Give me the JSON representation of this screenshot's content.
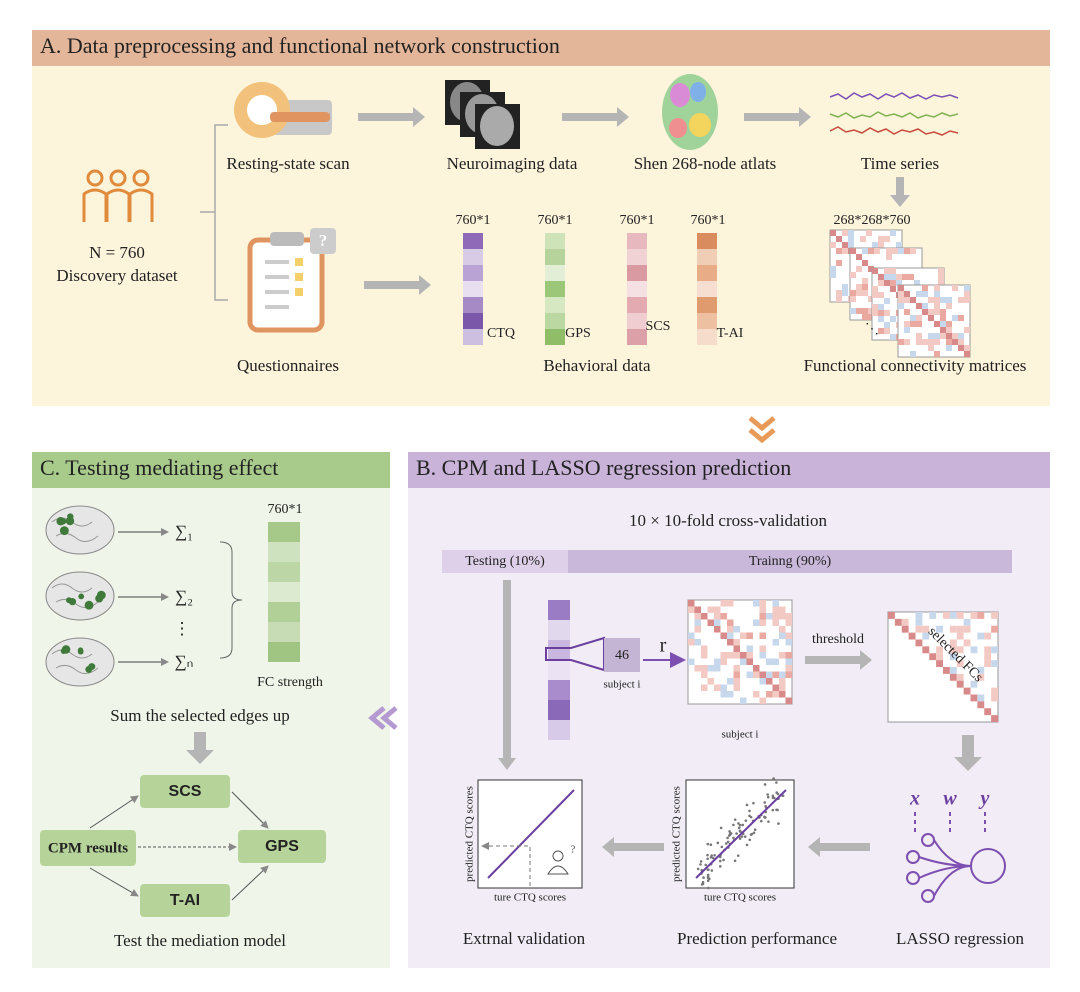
{
  "panel_a": {
    "title": "A. Data preprocessing and functional network construction",
    "population": {
      "n": "N = 760",
      "label": "Discovery dataset"
    },
    "steps": [
      "Resting-state scan",
      "Neuroimaging data",
      "Shen 268-node atlats",
      "Time series"
    ],
    "matrix_dims": "268*268*760",
    "ellipsis": "⋱",
    "questionnaires": "Questionnaires",
    "behavioral": {
      "dims": [
        "760*1",
        "760*1",
        "760*1",
        "760*1"
      ],
      "measures": [
        "CTQ",
        "GPS",
        "SCS",
        "T-AI"
      ],
      "label": "Behavioral data"
    },
    "fc_label": "Functional connectivity matrices"
  },
  "panel_b": {
    "title": "B. CPM  and LASSO regression prediction",
    "cv": "10 × 10-fold cross-validation",
    "testing": "Testing (10%)",
    "training": "Trainng (90%)",
    "subject_value": "46",
    "subject": "subject i",
    "r": "r",
    "matrix_subject": "subject i",
    "threshold": "threshold",
    "selected": "selected FCs",
    "lasso_vars": [
      "x",
      "w",
      "y"
    ],
    "y_axis": [
      "predicted CTQ scores",
      "predicted CTQ scores"
    ],
    "x_axis": [
      "ture CTQ scores",
      "ture CTQ scores"
    ],
    "captions": [
      "Extrnal validation",
      "Prediction performance",
      "LASSO regression"
    ]
  },
  "panel_c": {
    "title": "C. Testing mediating effect",
    "sums": [
      "∑₁",
      "∑₂",
      "∑ₙ"
    ],
    "vdots": "⋮",
    "dims": "760*1",
    "fc_strength": "FC strength",
    "sum_caption": "Sum the selected edges up",
    "nodes": [
      "SCS",
      "CPM results",
      "GPS",
      "T-AI"
    ],
    "caption": "Test the mediation model"
  }
}
